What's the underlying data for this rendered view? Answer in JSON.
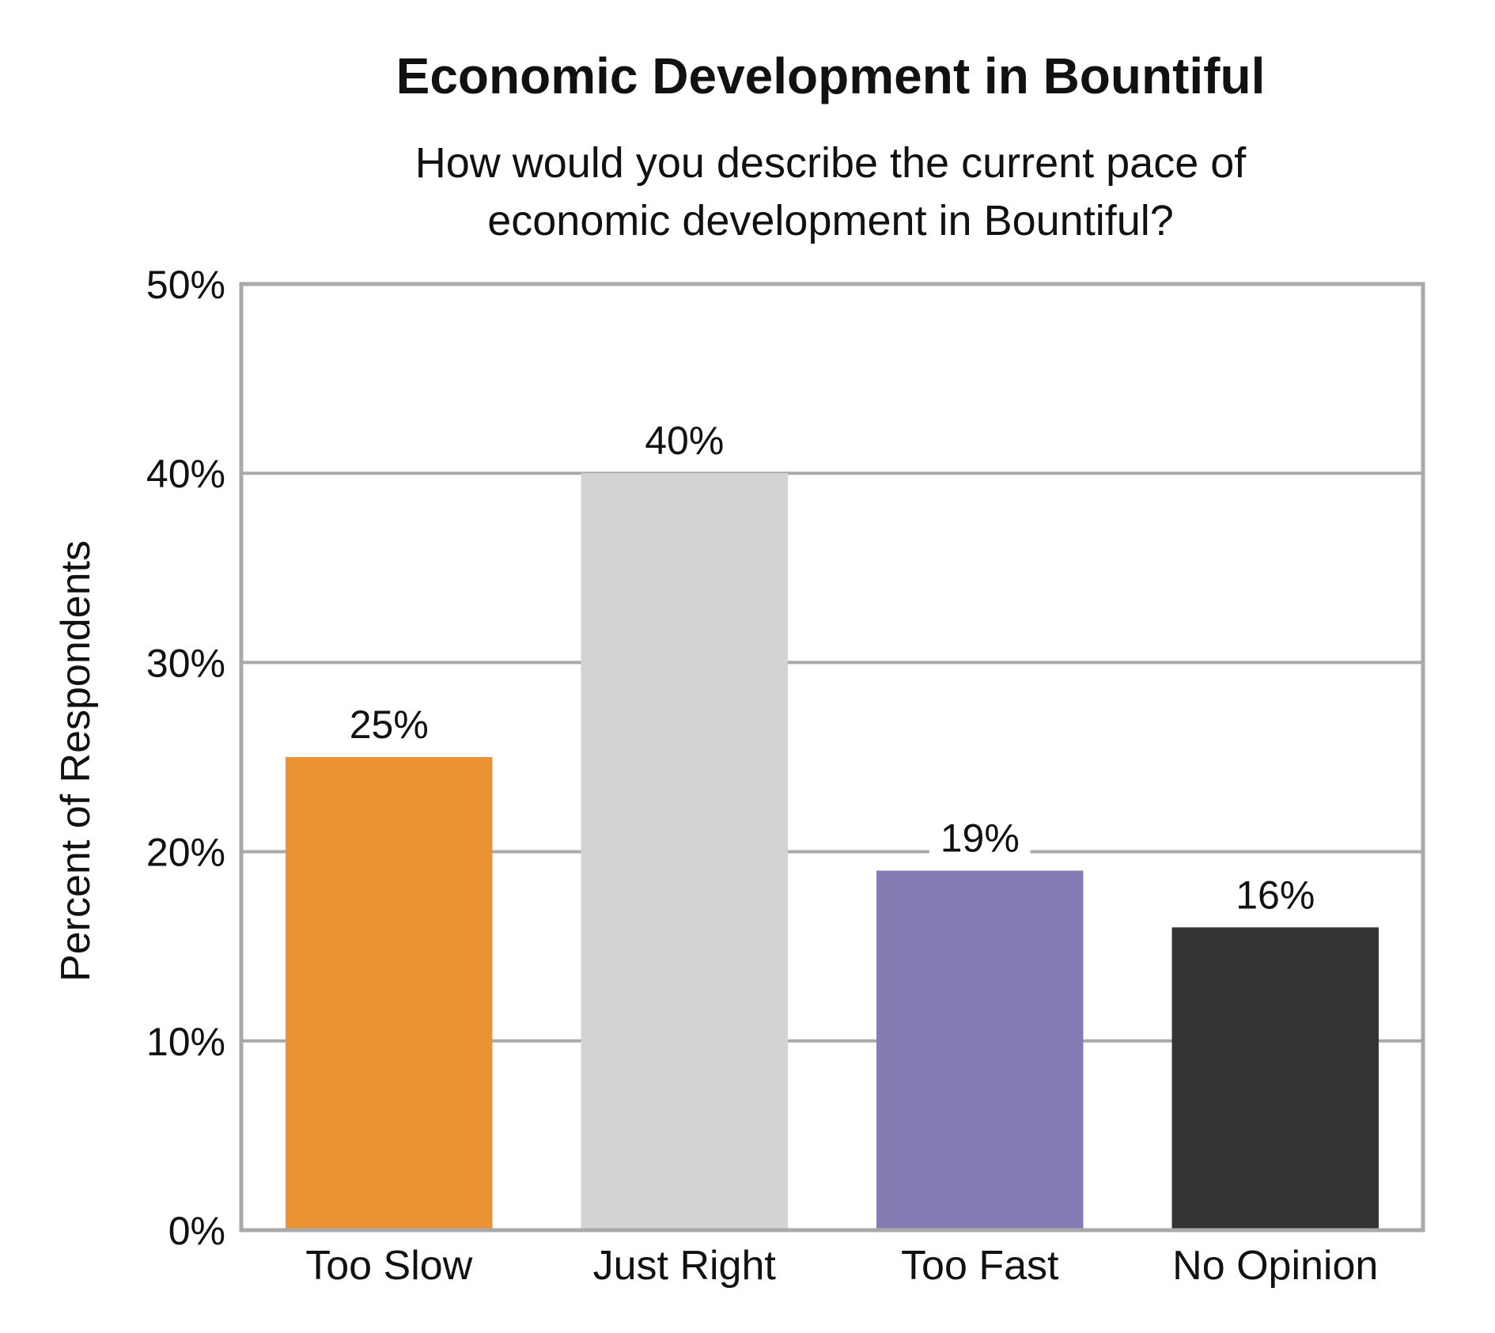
{
  "chart_data": {
    "type": "bar",
    "title": "Economic Development in Bountiful",
    "subtitle": [
      "How would you describe the current pace of",
      "economic development in Bountiful?"
    ],
    "xlabel": "",
    "ylabel": "Percent of Respondents",
    "categories": [
      "Too Slow",
      "Just Right",
      "Too Fast",
      "No Opinion"
    ],
    "values": [
      25,
      40,
      19,
      16
    ],
    "data_labels": [
      "25%",
      "40%",
      "19%",
      "16%"
    ],
    "colors": [
      "#EB9234",
      "#D3D3D3",
      "#877BB4",
      "#333333"
    ],
    "ylim": [
      0,
      50
    ],
    "yticks": [
      0,
      10,
      20,
      30,
      40,
      50
    ],
    "ytick_labels": [
      "0%",
      "10%",
      "20%",
      "30%",
      "40%",
      "50%"
    ],
    "grid": true,
    "legend": "none"
  }
}
